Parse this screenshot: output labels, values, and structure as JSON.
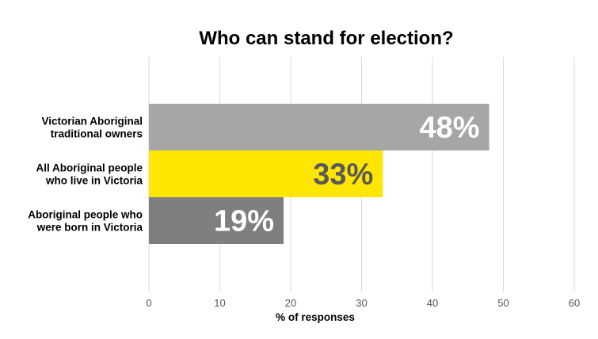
{
  "chart_data": {
    "type": "bar",
    "orientation": "horizontal",
    "title": "Who can stand for election?",
    "xlabel": "% of responses",
    "ylabel": "",
    "xlim": [
      0,
      60
    ],
    "ticks": [
      "0",
      "10",
      "20",
      "30",
      "40",
      "50",
      "60"
    ],
    "grid": true,
    "categories": [
      [
        "Victorian Aboriginal",
        "traditional owners"
      ],
      [
        "All Aboriginal people",
        "who live in Victoria"
      ],
      [
        "Aboriginal people who",
        "were born in Victoria"
      ]
    ],
    "values": [
      48,
      33,
      19
    ],
    "data_labels": [
      "48%",
      "33%",
      "19%"
    ],
    "bar_colors": [
      "#a6a6a6",
      "#ffe600",
      "#7f7f7f"
    ],
    "label_colors": [
      "#ffffff",
      "#595959",
      "#ffffff"
    ]
  }
}
